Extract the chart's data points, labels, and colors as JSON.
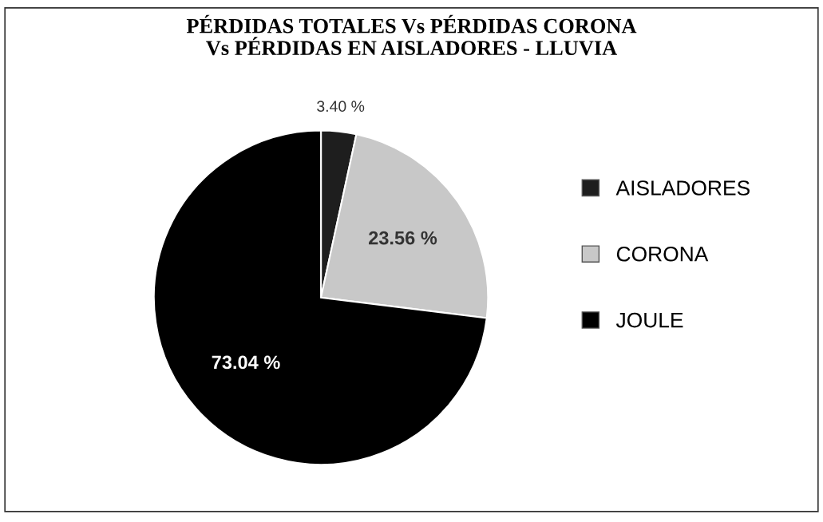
{
  "chart_data": {
    "type": "pie",
    "title": "PÉRDIDAS TOTALES Vs PÉRDIDAS CORONA\nVs PÉRDIDAS EN AISLADORES - LLUVIA",
    "categories": [
      "AISLADORES",
      "CORONA",
      "JOULE"
    ],
    "values": [
      3.4,
      23.56,
      73.04
    ],
    "colors": [
      "#1e1e1e",
      "#c8c8c8",
      "#000000"
    ],
    "value_labels": [
      "3.40 %",
      "23.56 %",
      "73.04 %"
    ],
    "legend": "right"
  }
}
